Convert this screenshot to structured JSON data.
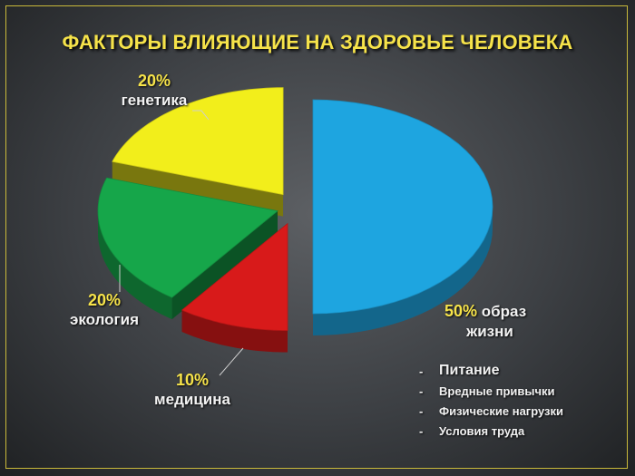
{
  "title": "ФАКТОРЫ ВЛИЯЮЩИЕ НА ЗДОРОВЬЕ ЧЕЛОВЕКА",
  "chart_data": {
    "type": "pie",
    "title": "ФАКТОРЫ ВЛИЯЮЩИЕ НА ЗДОРОВЬЕ ЧЕЛОВЕКА",
    "categories": [
      "образ жизни",
      "медицина",
      "экология",
      "генетика"
    ],
    "values": [
      50,
      10,
      20,
      20
    ],
    "colors": [
      "#1ea5e0",
      "#d81a1a",
      "#16a64a",
      "#f2ee1b"
    ],
    "exploded": true,
    "three_d": true
  },
  "labels": {
    "lifestyle": {
      "pct": "50%",
      "text1": "образ",
      "text2": "жизни"
    },
    "medicine": {
      "pct": "10%",
      "text": "медицина"
    },
    "ecology": {
      "pct": "20%",
      "text": "экология"
    },
    "genetics": {
      "pct": "20%",
      "text": "генетика"
    }
  },
  "notes": {
    "dash": "-",
    "items": [
      "Питание",
      "Вредные привычки",
      "Физические нагрузки",
      "Условия труда"
    ]
  }
}
